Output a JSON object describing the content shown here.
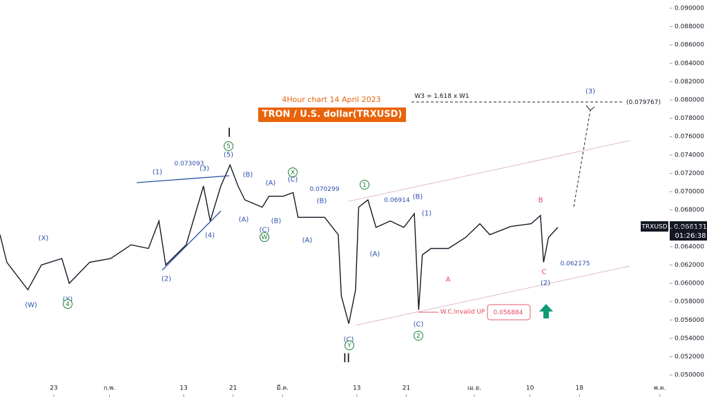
{
  "chart_data": {
    "type": "line",
    "color": "#131722",
    "x": [
      13.3,
      14.4,
      17.8,
      20.0,
      23.3,
      24.5,
      27.8,
      31.2,
      34.5,
      37.3,
      39.0,
      40.1,
      43.4,
      46.2,
      47.3,
      49.0,
      50.5,
      51.8,
      52.9,
      55.7,
      56.8,
      59.1,
      60.7,
      61.5,
      65.8,
      68.0,
      68.5,
      69.7,
      70.8,
      71.3,
      72.8,
      74.1,
      76.4,
      78.6,
      80.3,
      81.0,
      81.6,
      83.0,
      85.8,
      88.6,
      90.9,
      92.5,
      95.9,
      99.2,
      100.7,
      101.2,
      102.0,
      103.5
    ],
    "values": [
      0.0653,
      0.0623,
      0.0593,
      0.062,
      0.0627,
      0.06,
      0.0623,
      0.0627,
      0.0642,
      0.0638,
      0.0668,
      0.062,
      0.0642,
      0.0706,
      0.0668,
      0.0706,
      0.0729,
      0.0706,
      0.0691,
      0.0683,
      0.0695,
      0.0695,
      0.0699,
      0.0672,
      0.0672,
      0.0653,
      0.0586,
      0.0556,
      0.0593,
      0.0683,
      0.0691,
      0.0661,
      0.0668,
      0.0661,
      0.0676,
      0.0571,
      0.0631,
      0.0638,
      0.0638,
      0.065,
      0.0665,
      0.0653,
      0.0662,
      0.0665,
      0.0674,
      0.0623,
      0.065,
      0.0661
    ],
    "xlim": [
      13.3,
      121.6
    ],
    "ylim": [
      0.0476,
      0.0909
    ],
    "xticks": [
      {
        "value": 22,
        "label": "23"
      },
      {
        "value": 31,
        "label": "ก.พ."
      },
      {
        "value": 43,
        "label": "13"
      },
      {
        "value": 51,
        "label": "21"
      },
      {
        "value": 59,
        "label": "มี.ค."
      },
      {
        "value": 71,
        "label": "13"
      },
      {
        "value": 79,
        "label": "21"
      },
      {
        "value": 90,
        "label": "เม.ย."
      },
      {
        "value": 99,
        "label": "10"
      },
      {
        "value": 107,
        "label": "18"
      },
      {
        "value": 120,
        "label": "พ.ค."
      }
    ],
    "yticks": [
      {
        "value": 0.05,
        "label": "0.050000"
      },
      {
        "value": 0.052,
        "label": "0.052000"
      },
      {
        "value": 0.054,
        "label": "0.054000"
      },
      {
        "value": 0.056,
        "label": "0.056000"
      },
      {
        "value": 0.058,
        "label": "0.058000"
      },
      {
        "value": 0.06,
        "label": "0.060000"
      },
      {
        "value": 0.062,
        "label": "0.062000"
      },
      {
        "value": 0.064,
        "label": "0.064000"
      },
      {
        "value": 0.066,
        "label": "0.066000"
      },
      {
        "value": 0.068,
        "label": "0.068000"
      },
      {
        "value": 0.07,
        "label": "0.070000"
      },
      {
        "value": 0.072,
        "label": "0.072000"
      },
      {
        "value": 0.074,
        "label": "0.074000"
      },
      {
        "value": 0.076,
        "label": "0.076000"
      },
      {
        "value": 0.078,
        "label": "0.078000"
      },
      {
        "value": 0.08,
        "label": "0.080000"
      },
      {
        "value": 0.082,
        "label": "0.082000"
      },
      {
        "value": 0.084,
        "label": "0.084000"
      },
      {
        "value": 0.086,
        "label": "0.086000"
      },
      {
        "value": 0.088,
        "label": "0.088000"
      },
      {
        "value": 0.09,
        "label": "0.090000"
      }
    ],
    "subtitle": "4Hour chart 14 April 2023",
    "title": "TRON / U.S. dollar(TRXUSD)",
    "annotations": [
      "I",
      "II",
      "W3 = 1.618 x W1",
      "(0.079767)",
      "(3)",
      "(1)",
      "(3)",
      "(5)",
      "0.073093",
      "(2)",
      "(4)",
      "(X)",
      "(W)",
      "(X)",
      "(B)",
      "(A)",
      "(C)",
      "0.070299",
      "(B)",
      "(A)",
      "(B)",
      "(C)",
      "(A)",
      "0.06914",
      "(B)",
      "(1)",
      "(A)",
      "A",
      "B",
      "C",
      "(2)",
      "0.062175",
      "(C)",
      "(C)",
      "W.C.Invalid UP",
      "0.056884",
      "5",
      "X",
      "W",
      "4",
      "1",
      "Y",
      "2"
    ],
    "price_tag": {
      "symbol": "TRXUSD",
      "price": "0.066131",
      "countdown": "01:26:38"
    }
  }
}
